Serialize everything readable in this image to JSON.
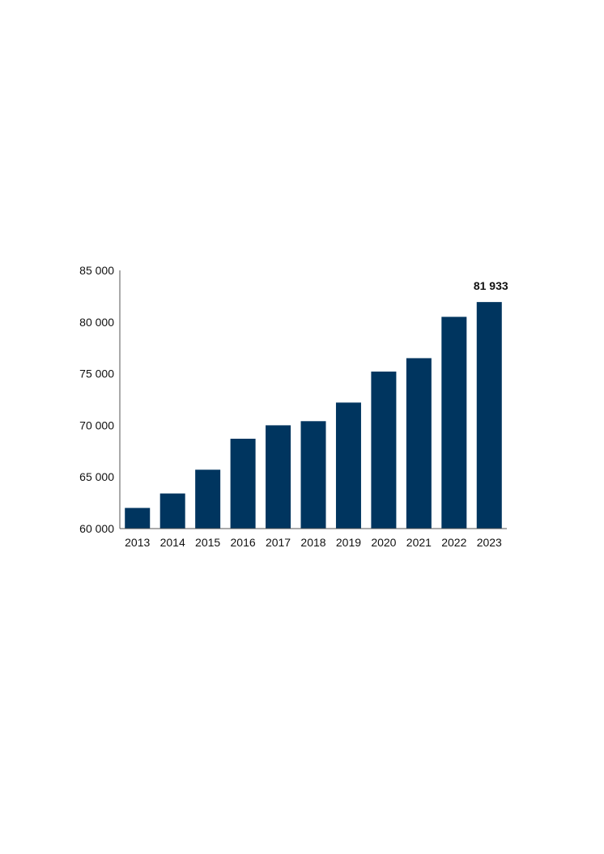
{
  "chart_data": {
    "type": "bar",
    "categories": [
      "2013",
      "2014",
      "2015",
      "2016",
      "2017",
      "2018",
      "2019",
      "2020",
      "2021",
      "2022",
      "2023"
    ],
    "values": [
      62000,
      63400,
      65700,
      68700,
      70000,
      70400,
      72200,
      75200,
      76500,
      80500,
      81933
    ],
    "ylim": [
      60000,
      85000
    ],
    "yticks": [
      60000,
      65000,
      70000,
      75000,
      80000,
      85000
    ],
    "ytick_labels": [
      "60 000",
      "65 000",
      "70 000",
      "75 000",
      "80 000",
      "85 000"
    ],
    "data_labels": [
      {
        "category": "2023",
        "text": "81 933"
      }
    ],
    "bar_color": "#00355f",
    "axis_color": "#555555",
    "grid": false,
    "title": "",
    "xlabel": "",
    "ylabel": ""
  }
}
